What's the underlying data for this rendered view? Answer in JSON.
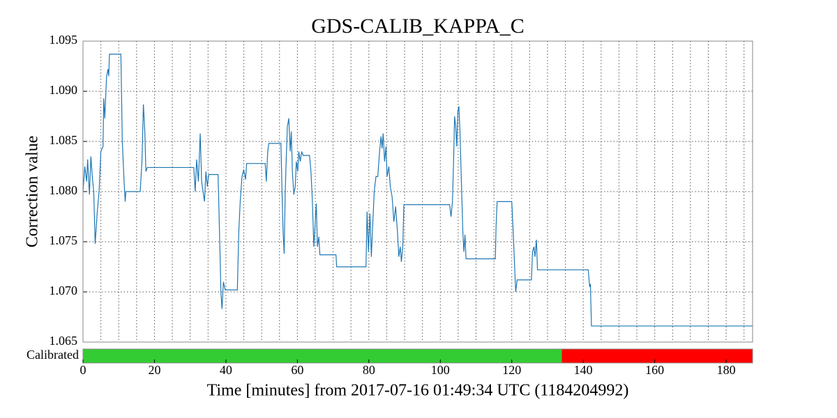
{
  "chart_data": [
    {
      "type": "line",
      "title": "GDS-CALIB_KAPPA_C",
      "ylabel": "Correction value",
      "xlim": [
        0,
        187.4
      ],
      "xticks": [
        0,
        5,
        10,
        15,
        20,
        25,
        30,
        35,
        40,
        45,
        50,
        55,
        60,
        65,
        70,
        75,
        80,
        85,
        90,
        95,
        100,
        105,
        110,
        115,
        120,
        125,
        130,
        135,
        140,
        145,
        150,
        155,
        160,
        165,
        170,
        175,
        180,
        185
      ],
      "ylim": [
        1.065,
        1.095
      ],
      "yticks": [
        1.065,
        {
          "value": 1.07,
          "label": "1.070"
        },
        1.075,
        {
          "value": 1.08,
          "label": "1.080"
        },
        1.085,
        {
          "value": 1.09,
          "label": "1.090"
        },
        1.095
      ],
      "grid": true,
      "series": [
        {
          "color": "#1f77b4",
          "x": [
            0,
            0.5,
            1,
            1.3,
            1.8,
            2.2,
            2.6,
            3.0,
            3.4,
            4.0,
            4.5,
            5.0,
            5.6,
            5.8,
            6.1,
            6.6,
            7.0,
            7.2,
            7.4,
            10.6,
            11.0,
            11.5,
            11.8,
            12.0,
            16.0,
            16.5,
            16.9,
            17.3,
            17.6,
            18,
            31.0,
            31.4,
            31.8,
            32.3,
            32.8,
            33.2,
            33.6,
            34.0,
            34.4,
            34.8,
            35.2,
            37.8,
            38.2,
            38.6,
            38.9,
            39.3,
            39.8,
            43.2,
            43.6,
            44.0,
            44.5,
            45.0,
            45.5,
            45.8,
            51.0,
            51.3,
            51.7,
            52.0,
            55.4,
            55.7,
            56.0,
            56.3,
            56.6,
            56.9,
            57.2,
            57.6,
            58.0,
            58.3,
            58.6,
            59.0,
            59.4,
            59.7,
            60.1,
            60.4,
            60.8,
            61.2,
            61.6,
            63.4,
            63.8,
            64.2,
            64.6,
            65.0,
            65.3,
            65.6,
            66.0,
            66.3,
            70.8,
            71.0,
            79.2,
            79.5,
            79.9,
            80.3,
            80.7,
            81.0,
            81.5,
            82.0,
            82.5,
            83.0,
            83.4,
            83.7,
            84.0,
            84.4,
            84.8,
            85.1,
            85.6,
            86.0,
            86.5,
            87.0,
            87.5,
            88.0,
            88.4,
            88.8,
            89.1,
            89.5,
            89.8,
            102.6,
            103.0,
            103.4,
            103.7,
            104.0,
            104.3,
            104.6,
            104.9,
            105.2,
            105.5,
            105.9,
            106.3,
            106.6,
            106.9,
            107.2,
            115.4,
            115.6,
            115.9,
            120.0,
            120.4,
            120.8,
            121.1,
            121.5,
            125.5,
            125.8,
            126.2,
            126.5,
            126.9,
            127.2,
            141.4,
            141.8,
            142.0,
            142.3,
            187.4
          ],
          "values": [
            1.08,
            1.0825,
            1.081,
            1.0832,
            1.0797,
            1.0835,
            1.0815,
            1.08,
            1.0748,
            1.078,
            1.08,
            1.084,
            1.0845,
            1.0893,
            1.0873,
            1.0915,
            1.0922,
            1.0915,
            1.0937,
            1.0937,
            1.085,
            1.081,
            1.079,
            1.08,
            1.08,
            1.083,
            1.0887,
            1.086,
            1.082,
            1.0824,
            1.0824,
            1.08,
            1.0832,
            1.081,
            1.0858,
            1.081,
            1.08,
            1.079,
            1.082,
            1.0805,
            1.0817,
            1.0817,
            1.076,
            1.07,
            1.0683,
            1.071,
            1.0702,
            1.0702,
            1.076,
            1.079,
            1.0815,
            1.0822,
            1.0812,
            1.0828,
            1.0828,
            1.081,
            1.084,
            1.0848,
            1.0848,
            1.08,
            1.076,
            1.0738,
            1.08,
            1.0835,
            1.0865,
            1.0873,
            1.084,
            1.086,
            1.082,
            1.0797,
            1.0805,
            1.083,
            1.082,
            1.084,
            1.083,
            1.084,
            1.0836,
            1.0836,
            1.082,
            1.079,
            1.0745,
            1.077,
            1.0788,
            1.0745,
            1.0755,
            1.0737,
            1.0737,
            1.0725,
            1.0725,
            1.078,
            1.074,
            1.0778,
            1.0735,
            1.076,
            1.08,
            1.0815,
            1.0815,
            1.084,
            1.0855,
            1.0843,
            1.0858,
            1.083,
            1.0845,
            1.0815,
            1.0825,
            1.0805,
            1.0795,
            1.077,
            1.0785,
            1.076,
            1.0735,
            1.0745,
            1.073,
            1.0745,
            1.0787,
            1.0787,
            1.0775,
            1.079,
            1.0828,
            1.0875,
            1.0865,
            1.0845,
            1.088,
            1.0885,
            1.086,
            1.081,
            1.076,
            1.074,
            1.0757,
            1.0733,
            1.0733,
            1.0765,
            1.079,
            1.079,
            1.076,
            1.0725,
            1.07,
            1.0712,
            1.0712,
            1.074,
            1.0745,
            1.0735,
            1.0752,
            1.0722,
            1.0722,
            1.0705,
            1.0708,
            1.0666,
            1.0666
          ]
        }
      ]
    },
    {
      "type": "state",
      "ylabel": "Calibrated",
      "xlabel": "Time [minutes] from 2017-07-16 01:49:34 UTC (1184204992)",
      "xlim": [
        0,
        187.4
      ],
      "xticks": [
        0,
        20,
        40,
        60,
        80,
        100,
        120,
        140,
        160,
        180
      ],
      "segments": [
        {
          "start": 0,
          "end": 134,
          "color": "#33cc33"
        },
        {
          "start": 134,
          "end": 187.4,
          "color": "#ff0000"
        }
      ]
    }
  ]
}
